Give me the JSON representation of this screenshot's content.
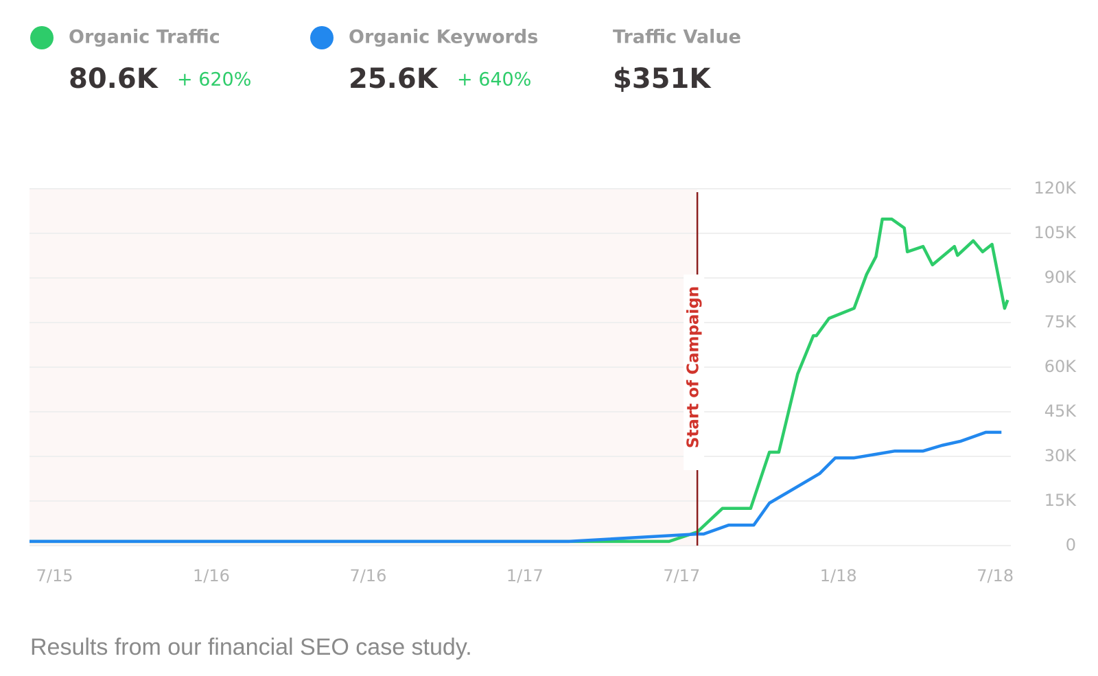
{
  "chart_data": {
    "type": "line",
    "series": [
      {
        "name": "Organic Traffic",
        "color": "#2ecc6a",
        "x": [
          2015.42,
          2017.46,
          2017.55,
          2017.63,
          2017.72,
          2017.78,
          2017.81,
          2017.87,
          2017.92,
          2017.93,
          2017.97,
          2018.05,
          2018.09,
          2018.12,
          2018.14,
          2018.17,
          2018.21,
          2018.22,
          2018.27,
          2018.3,
          2018.37,
          2018.38,
          2018.43,
          2018.46,
          2018.49,
          2018.53,
          2018.54
        ],
        "values": [
          1400,
          1400,
          4600,
          12500,
          12500,
          31400,
          31400,
          57700,
          70600,
          70600,
          76400,
          79800,
          91200,
          97200,
          109800,
          109800,
          106800,
          98800,
          100600,
          94400,
          100600,
          97600,
          102500,
          98800,
          101300,
          79800,
          82600
        ]
      },
      {
        "name": "Organic Keywords",
        "color": "#2288ee",
        "x": [
          2015.42,
          2017.14,
          2017.55,
          2017.57,
          2017.65,
          2017.73,
          2017.78,
          2017.94,
          2017.99,
          2018.05,
          2018.18,
          2018.27,
          2018.33,
          2018.39,
          2018.47,
          2018.52
        ],
        "values": [
          1400,
          1400,
          3900,
          3900,
          6900,
          6900,
          14300,
          24200,
          29500,
          29500,
          31800,
          31800,
          33700,
          35100,
          38100,
          38100
        ]
      }
    ],
    "summary": [
      {
        "value": "80.6K",
        "change": "+ 620%"
      },
      {
        "value": "25.6K",
        "change": "+ 640%"
      },
      {
        "label": "Traffic Value",
        "value": "$351K"
      }
    ],
    "annotation": {
      "text": "Start of Campaign",
      "x": 2017.55
    },
    "xlim": [
      2015.42,
      2018.55
    ],
    "xticks": [
      {
        "value": 2015.5,
        "label": "7/15"
      },
      {
        "value": 2016.0,
        "label": "1/16"
      },
      {
        "value": 2016.5,
        "label": "7/16"
      },
      {
        "value": 2017.0,
        "label": "1/17"
      },
      {
        "value": 2017.5,
        "label": "7/17"
      },
      {
        "value": 2018.0,
        "label": "1/18"
      },
      {
        "value": 2018.5,
        "label": "7/18"
      }
    ],
    "ylim": [
      0,
      120000
    ],
    "yticks": [
      0,
      {
        "value": 15000,
        "label": "15K"
      },
      {
        "value": 30000,
        "label": "30K"
      },
      {
        "value": 45000,
        "label": "45K"
      },
      {
        "value": 60000,
        "label": "60K"
      },
      {
        "value": 75000,
        "label": "75K"
      },
      {
        "value": 90000,
        "label": "90K"
      },
      {
        "value": 105000,
        "label": "105K"
      },
      {
        "value": 120000,
        "label": "120K"
      }
    ],
    "grid": true,
    "caption": "Results from our financial SEO case study."
  }
}
